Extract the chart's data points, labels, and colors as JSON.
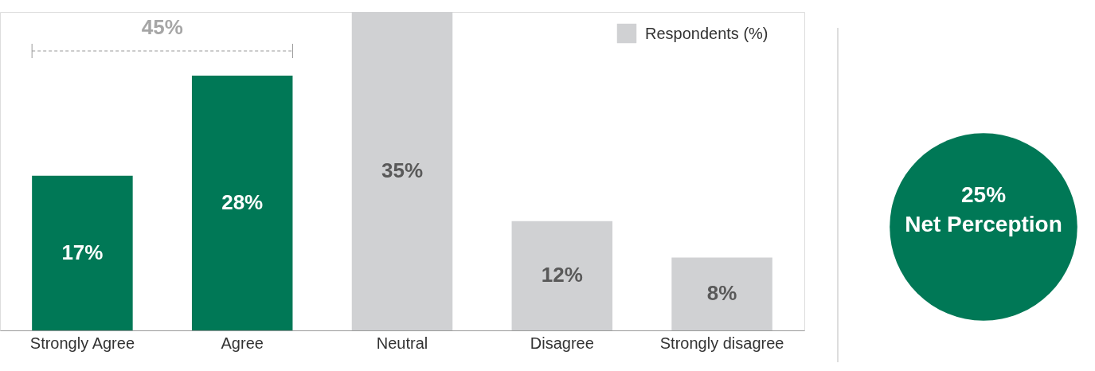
{
  "chart_data": {
    "type": "bar",
    "categories": [
      "Strongly Agree",
      "Agree",
      "Neutral",
      "Disagree",
      "Strongly disagree"
    ],
    "series": [
      {
        "color": "#007856",
        "values": [
          17,
          28,
          null,
          null,
          null
        ],
        "value_labels": [
          "17%",
          "28%",
          null,
          null,
          null
        ]
      },
      {
        "name": "Respondents (%)",
        "color": "#d0d1d3",
        "values": [
          null,
          null,
          35,
          12,
          8
        ],
        "value_labels": [
          null,
          null,
          "35%",
          "12%",
          "8%"
        ]
      }
    ],
    "annotations": [
      "45%",
      "25%",
      "Net Perception"
    ],
    "legend": "top right",
    "grid": false
  }
}
